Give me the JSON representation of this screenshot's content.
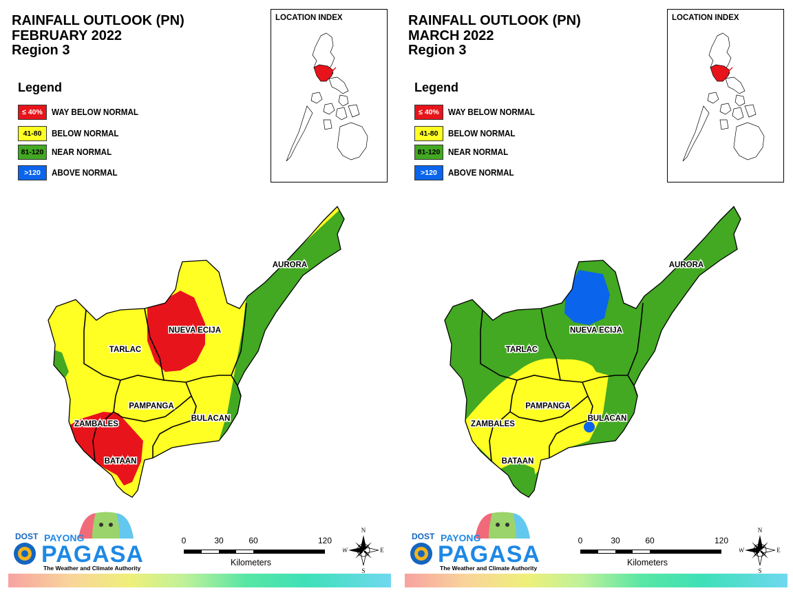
{
  "panels": [
    {
      "title_line1": "RAINFALL OUTLOOK (PN)",
      "title_line2": "FEBRUARY 2022",
      "title_line3": "Region 3",
      "provinces": [
        "AURORA",
        "NUEVA ECIJA",
        "TARLAC",
        "PAMPANGA",
        "BULACAN",
        "ZAMBALES",
        "BATAAN"
      ],
      "category_by_zone": {
        "northwest": "BELOW NORMAL",
        "east_strip": "NEAR NORMAL",
        "nueva_ecija_center": "WAY BELOW NORMAL",
        "zambales_bataan_south": "WAY BELOW NORMAL",
        "central": "BELOW NORMAL"
      }
    },
    {
      "title_line1": "RAINFALL OUTLOOK (PN)",
      "title_line2": "MARCH 2022",
      "title_line3": "Region 3",
      "provinces": [
        "AURORA",
        "NUEVA ECIJA",
        "TARLAC",
        "PAMPANGA",
        "BULACAN",
        "ZAMBALES",
        "BATAAN"
      ],
      "category_by_zone": {
        "northwest": "NEAR NORMAL",
        "east_strip": "NEAR NORMAL",
        "nueva_ecija_north": "ABOVE NORMAL",
        "bulacan_spot": "ABOVE NORMAL",
        "central": "BELOW NORMAL"
      }
    }
  ],
  "legend": {
    "heading": "Legend",
    "items": [
      {
        "range": "≤ 40%",
        "label": "WAY BELOW NORMAL",
        "color": "#e8141b",
        "text_color": "#ffffff"
      },
      {
        "range": "41-80",
        "label": "BELOW NORMAL",
        "color": "#ffff24",
        "text_color": "#000000"
      },
      {
        "range": "81-120",
        "label": "NEAR NORMAL",
        "color": "#43a822",
        "text_color": "#000000"
      },
      {
        "range": ">120",
        "label": "ABOVE NORMAL",
        "color": "#0b64ec",
        "text_color": "#ffffff"
      }
    ]
  },
  "inset": {
    "title": "LOCATION INDEX",
    "highlight_color": "#e8141b"
  },
  "logo": {
    "agency": "DOST",
    "brand_top": "PAYONG",
    "brand_main": "PAGASA",
    "tagline": "The Weather and Climate Authority"
  },
  "scale_bar": {
    "ticks": [
      "0",
      "30",
      "60",
      "120"
    ],
    "tick_values_km": [
      0,
      30,
      60,
      120
    ],
    "unit": "Kilometers"
  },
  "compass": {
    "n": "N",
    "s": "S",
    "e": "E",
    "w": "W"
  },
  "colors": {
    "way_below": "#e8141b",
    "below": "#ffff24",
    "near": "#43a822",
    "above": "#0b64ec"
  }
}
